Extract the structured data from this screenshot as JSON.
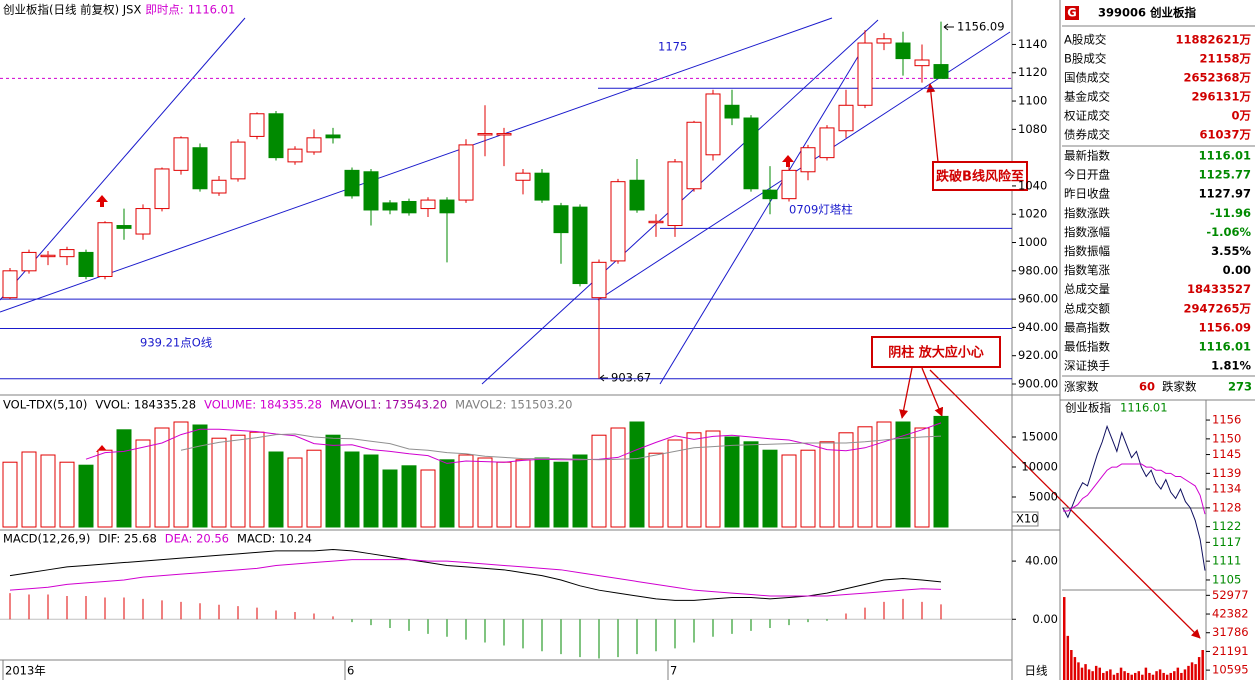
{
  "chart_data": [
    {
      "type": "candlestick",
      "title": "创业板指(日线 前复权) JSX",
      "last_price_label": "即时点:",
      "last_price": 1116.01,
      "categories": [
        "2013年",
        null,
        null,
        null,
        null,
        null,
        null,
        null,
        null,
        null,
        null,
        null,
        null,
        null,
        null,
        null,
        null,
        null,
        "6",
        null,
        null,
        null,
        null,
        null,
        null,
        null,
        null,
        null,
        null,
        null,
        null,
        null,
        null,
        null,
        null,
        "7",
        null,
        null,
        null,
        null,
        null,
        null,
        null,
        null,
        null,
        null,
        null,
        null,
        null,
        null
      ],
      "open": [
        961,
        980,
        990,
        990,
        993,
        976,
        1012,
        1006,
        1024,
        1051,
        1067,
        1035,
        1045,
        1075,
        1091,
        1057,
        1064,
        1076,
        1051,
        1050,
        1028,
        1029,
        1024,
        1030,
        1030,
        1076,
        1076,
        1044,
        1049,
        1026,
        1025,
        961,
        987,
        1044,
        1014,
        1012,
        1038,
        1062,
        1097,
        1088,
        1037,
        1031,
        1050,
        1060,
        1079,
        1097,
        1141,
        1141,
        1125,
        1125.77
      ],
      "high": [
        982,
        995,
        994,
        997,
        995,
        1015,
        1024,
        1027,
        1053,
        1075,
        1070,
        1047,
        1073,
        1092,
        1093,
        1068,
        1080,
        1081,
        1053,
        1052,
        1030,
        1031,
        1032,
        1032,
        1073,
        1097,
        1081,
        1052,
        1052,
        1028,
        1027,
        988,
        1045,
        1059,
        1020,
        1059,
        1086,
        1108,
        1108,
        1090,
        1054,
        1058,
        1069,
        1083,
        1108,
        1150,
        1148,
        1149,
        1140,
        1156.09
      ],
      "low": [
        960,
        978,
        984,
        984,
        974,
        974,
        1002,
        1002,
        1022,
        1048,
        1036,
        1033,
        1043,
        1073,
        1058,
        1055,
        1062,
        1070,
        1031,
        1012,
        1020,
        1019,
        1018,
        986,
        1028,
        1061,
        1054,
        1034,
        1028,
        985,
        969,
        903.67,
        985,
        1021,
        1004,
        1004,
        1036,
        1058,
        1083,
        1036,
        1020,
        1029,
        1044,
        1058,
        1074,
        1095,
        1136,
        1118,
        1113,
        1116.01
      ],
      "close": [
        980,
        993,
        991,
        995,
        976,
        1014,
        1010,
        1024,
        1052,
        1074,
        1038,
        1044,
        1071,
        1091,
        1060,
        1066,
        1074,
        1074,
        1033,
        1023,
        1023,
        1021,
        1030,
        1021,
        1069,
        1077,
        1077,
        1049,
        1030,
        1007,
        971,
        986,
        1043,
        1023,
        1015,
        1057,
        1085,
        1105,
        1088,
        1038,
        1031,
        1051,
        1067,
        1081,
        1097,
        1141,
        1144,
        1130,
        1129,
        1116.01
      ],
      "up_color": "#e00000",
      "down_color": "#008a00",
      "level_color": "#1a1acc",
      "last_price_color": "#d000d0",
      "levels": [
        1109,
        1010,
        960,
        939.21,
        903.67
      ],
      "annotations": [
        "1175",
        "0709灯塔柱",
        "939.21点O线",
        "跌破B线风险至",
        "阴柱 放大应小心"
      ],
      "ylim": [
        900,
        1170
      ],
      "yticks": [
        {
          "value": 900,
          "label": "900.00"
        },
        {
          "value": 920,
          "label": "920.00"
        },
        {
          "value": 940,
          "label": "940.00"
        },
        {
          "value": 960,
          "label": "960.00"
        },
        {
          "value": 980,
          "label": "980.00"
        },
        1000,
        1020,
        1040,
        1080,
        1100,
        1120,
        1140
      ]
    },
    {
      "type": "volume",
      "header": [
        {
          "text": "VOL-TDX(5,10)",
          "color": "#000000"
        },
        {
          "text": "VVOL: 184335.28",
          "color": "#000000"
        },
        {
          "text": "VOLUME: 184335.28",
          "color": "#d000d0"
        },
        {
          "text": "MAVOL1: 173543.20",
          "color": "#a000a0"
        },
        {
          "text": "MAVOL2: 151503.20",
          "color": "#808080"
        }
      ],
      "scale_label": "X10",
      "values": [
        10800,
        12500,
        12000,
        10800,
        10300,
        12800,
        16200,
        14500,
        16500,
        17500,
        17000,
        14800,
        15300,
        15800,
        12500,
        11500,
        12800,
        15300,
        12500,
        12000,
        9500,
        10200,
        9500,
        11200,
        12000,
        11500,
        10800,
        11200,
        11500,
        10800,
        12000,
        15300,
        16500,
        17500,
        12300,
        14500,
        15700,
        16000,
        15000,
        14200,
        12800,
        12000,
        12800,
        14200,
        15700,
        16700,
        17500,
        17500,
        16500,
        18433.528
      ],
      "series": [
        {
          "name": "MAVOL1",
          "color": "#d000d0",
          "values": [
            null,
            null,
            null,
            null,
            11300,
            12400,
            12600,
            13300,
            14000,
            15400,
            16300,
            16300,
            16100,
            15900,
            15500,
            15200,
            13900,
            13600,
            13700,
            12900,
            12600,
            12200,
            11900,
            10600,
            11000,
            10900,
            10800,
            11100,
            11300,
            11200,
            11200,
            11300,
            11600,
            12900,
            14100,
            15200,
            14600,
            15100,
            15300,
            15000,
            14700,
            14500,
            13800,
            12900,
            12700,
            13200,
            14200,
            15200,
            16200,
            17354.32
          ]
        },
        {
          "name": "MAVOL2",
          "color": "#909090",
          "values": [
            null,
            null,
            null,
            null,
            null,
            null,
            null,
            null,
            null,
            12800,
            13500,
            14100,
            14500,
            14900,
            15400,
            15500,
            15000,
            14800,
            14700,
            14300,
            13900,
            13000,
            12800,
            12400,
            12200,
            11800,
            11600,
            11400,
            11400,
            11400,
            11300,
            11200,
            11300,
            11400,
            12000,
            12600,
            13200,
            13400,
            13600,
            13700,
            13800,
            13900,
            14000,
            14000,
            14000,
            14200,
            14500,
            14800,
            15000,
            15150.32
          ]
        }
      ],
      "ylim": [
        0,
        21667
      ],
      "yticks": [
        5000,
        10000,
        15000
      ]
    },
    {
      "type": "macd",
      "header": [
        {
          "text": "MACD(12,26,9)",
          "color": "#000000"
        },
        {
          "text": "DIF: 25.68",
          "color": "#000000"
        },
        {
          "text": "DEA: 20.56",
          "color": "#d000d0"
        },
        {
          "text": "MACD: 10.24",
          "color": "#000000"
        }
      ],
      "values": [
        18,
        17,
        17,
        16,
        16,
        15,
        15,
        14,
        13,
        12,
        11,
        10,
        9,
        8,
        6,
        5,
        4,
        2,
        -2,
        -4,
        -6,
        -8,
        -10,
        -12,
        -14,
        -16,
        -18,
        -20,
        -22,
        -24,
        -26,
        -27,
        -26,
        -24,
        -22,
        -20,
        -16,
        -12,
        -10,
        -8,
        -6,
        -4,
        -2,
        -1,
        4,
        8,
        12,
        14,
        12,
        10.24
      ],
      "series": [
        {
          "name": "DIF",
          "color": "#000000",
          "values": [
            30,
            32,
            34,
            36,
            37,
            38,
            39,
            40,
            41,
            42,
            43,
            44,
            45,
            46,
            47,
            47,
            47,
            48,
            47,
            45,
            43,
            41,
            39,
            37,
            36,
            35,
            34,
            32,
            30,
            27,
            23,
            20,
            18,
            16,
            14,
            13,
            13,
            14,
            15,
            15,
            14,
            15,
            16,
            18,
            21,
            24,
            27,
            28,
            27,
            25.68
          ]
        },
        {
          "name": "DEA",
          "color": "#d000d0",
          "values": [
            20,
            21,
            22,
            24,
            25,
            26,
            27,
            29,
            30,
            31,
            32,
            33,
            34,
            35,
            37,
            38,
            39,
            40,
            41,
            41,
            41,
            41,
            40,
            40,
            39,
            38,
            37,
            36,
            35,
            34,
            32,
            30,
            28,
            26,
            24,
            22,
            20,
            19,
            18,
            17,
            16,
            16,
            16,
            16,
            17,
            18,
            19,
            20,
            21,
            20.56
          ]
        }
      ],
      "ylim": [
        -28,
        60
      ],
      "yticks": [
        {
          "value": 40,
          "label": "40.00"
        },
        {
          "value": 0,
          "label": "0.00"
        }
      ]
    },
    {
      "type": "intraday",
      "title": "创业板指",
      "last_price": 1116.01,
      "reference": 1127.97,
      "series": [
        {
          "name": "price",
          "color": "#101060",
          "values": [
            1128,
            1125,
            1129,
            1133,
            1136,
            1135,
            1140,
            1145,
            1149,
            1154,
            1150,
            1146,
            1152,
            1148,
            1144,
            1146,
            1141,
            1138,
            1140,
            1136,
            1134,
            1137,
            1133,
            1131,
            1134,
            1130,
            1128,
            1124,
            1118,
            1108
          ]
        },
        {
          "name": "avg",
          "color": "#d000d0",
          "values": [
            1127,
            1127,
            1128,
            1129,
            1131,
            1132,
            1134,
            1136,
            1138,
            1140,
            1141,
            1141,
            1142,
            1142,
            1142,
            1142,
            1142,
            1141,
            1141,
            1140,
            1140,
            1139,
            1139,
            1138,
            1138,
            1137,
            1136,
            1135,
            1132,
            1126
          ]
        }
      ],
      "ylim": [
        1101.8,
        1160.8
      ],
      "yticks": [
        1156,
        1150,
        1145,
        1139,
        1134,
        1128,
        1122,
        1117,
        1111,
        1105
      ]
    },
    {
      "type": "intraday-volume",
      "color": "#e00000",
      "values": [
        52000,
        30000,
        22000,
        18000,
        15000,
        12000,
        14000,
        11000,
        10000,
        13000,
        12000,
        9000,
        10000,
        11000,
        8000,
        9000,
        12000,
        10000,
        9000,
        8000,
        9000,
        10000,
        8000,
        12000,
        9000,
        8000,
        10000,
        11000,
        9000,
        8000,
        9000,
        10000,
        12000,
        9000,
        11000,
        13000,
        15000,
        14000,
        18000,
        22000
      ],
      "ylim": [
        5000,
        56000
      ],
      "yticks": [
        52977,
        42382,
        31786,
        21191,
        10595
      ]
    }
  ],
  "period_label": "日线",
  "info_panel": {
    "icon": "G",
    "code_name": "399006 创业板指",
    "rows": [
      {
        "label": "A股成交",
        "value": "11882621万",
        "color": "#d00000"
      },
      {
        "label": "B股成交",
        "value": "21158万",
        "color": "#d00000"
      },
      {
        "label": "国债成交",
        "value": "2652368万",
        "color": "#d00000"
      },
      {
        "label": "基金成交",
        "value": "296131万",
        "color": "#d00000"
      },
      {
        "label": "权证成交",
        "value": "0万",
        "color": "#d00000"
      },
      {
        "label": "债券成交",
        "value": "61037万",
        "color": "#d00000"
      },
      {
        "label": "最新指数",
        "value": "1116.01",
        "color": "#008a00"
      },
      {
        "label": "今日开盘",
        "value": "1125.77",
        "color": "#008a00"
      },
      {
        "label": "昨日收盘",
        "value": "1127.97",
        "color": "#000000"
      },
      {
        "label": "指数涨跌",
        "value": "-11.96",
        "color": "#008a00"
      },
      {
        "label": "指数涨幅",
        "value": "-1.06%",
        "color": "#008a00"
      },
      {
        "label": "指数振幅",
        "value": "3.55%",
        "color": "#000000"
      },
      {
        "label": "指数笔涨",
        "value": "0.00",
        "color": "#000000"
      },
      {
        "label": "总成交量",
        "value": "18433527",
        "color": "#d00000"
      },
      {
        "label": "总成交额",
        "value": "2947265万",
        "color": "#d00000"
      },
      {
        "label": "最高指数",
        "value": "1156.09",
        "color": "#d00000"
      },
      {
        "label": "最低指数",
        "value": "1116.01",
        "color": "#008a00"
      },
      {
        "label": "深证换手",
        "value": "1.81%",
        "color": "#000000"
      }
    ],
    "advance_label": "涨家数",
    "advance": 60,
    "decline_label": "跌家数",
    "decline": 273
  }
}
